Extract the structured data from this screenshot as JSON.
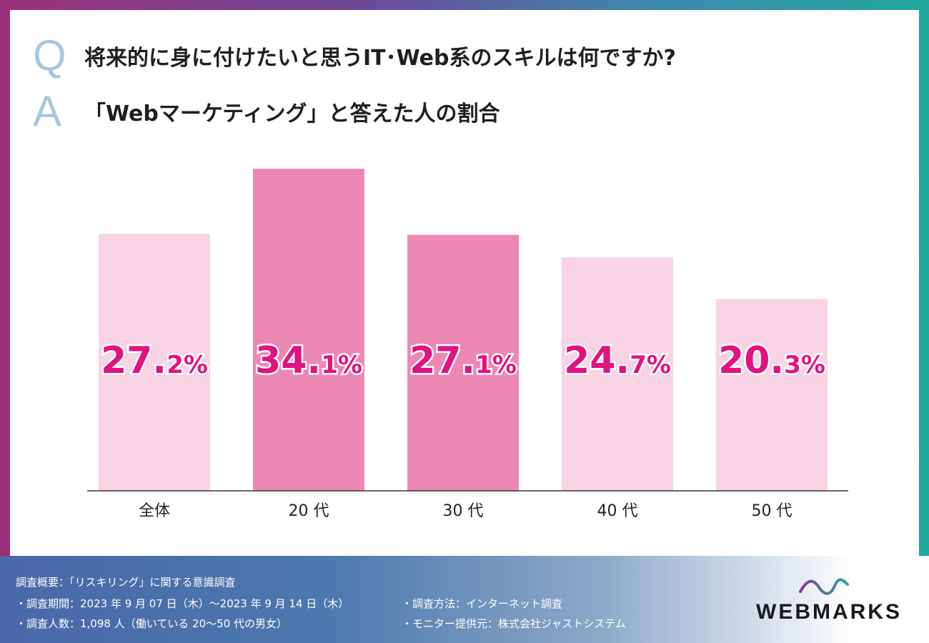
{
  "question": {
    "letter": "Q",
    "text": "将来的に身に付けたいと思うIT･Web系のスキルは何ですか?"
  },
  "answer": {
    "letter": "A",
    "text": "「Webマーケティング」と答えた人の割合"
  },
  "chart_data": {
    "type": "bar",
    "title": "「Webマーケティング」と答えた人の割合",
    "categories": [
      "全体",
      "20 代",
      "30 代",
      "40 代",
      "50 代"
    ],
    "values": [
      27.2,
      34.1,
      27.1,
      24.7,
      20.3
    ],
    "value_labels": [
      {
        "int": "27.",
        "dec": "2%"
      },
      {
        "int": "34.",
        "dec": "1%"
      },
      {
        "int": "27.",
        "dec": "1%"
      },
      {
        "int": "24.",
        "dec": "7%"
      },
      {
        "int": "20.",
        "dec": "3%"
      }
    ],
    "ylim": [
      0,
      35
    ],
    "xlabel": "",
    "ylabel": "",
    "grid": false,
    "highlighted": [
      false,
      true,
      true,
      false,
      false
    ],
    "colors": {
      "bar": "#f8d3e3",
      "bar_highlight": "#ed88b4",
      "label": "#e2127f",
      "axis": "#333333"
    }
  },
  "footer": {
    "title": "調査概要：「リスキリング」に関する意識調査",
    "period": "・調査期間：2023 年 9 月 07 日（木）～2023 年 9 月 14 日（木）",
    "respondents": "・調査人数：1,098 人（働いている 20～50 代の男女）",
    "method": "・調査方法：インターネット調査",
    "provider": "・モニター提供元：株式会社ジャストシステム"
  },
  "logo": {
    "text": "WEBMARKS",
    "icon": "wave-icon",
    "colors": [
      "#8a3b8f",
      "#2fa6a0"
    ]
  }
}
